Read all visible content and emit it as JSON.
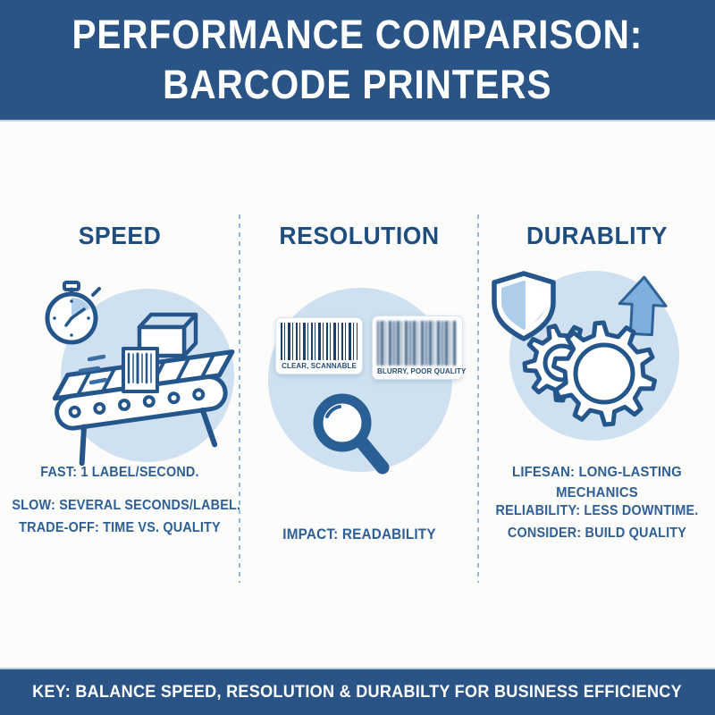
{
  "header": {
    "title_line1": "PERFORMANCE COMPARISON:",
    "title_line2": "BARCODE PRINTERS"
  },
  "columns": {
    "speed": {
      "title": "SPEED",
      "icon": "stopwatch-conveyor-printer-icon",
      "fast_line": "FAST: 1 LABEL/SECOND.",
      "slow_line": "SLOW: SEVERAL SECONDS/LABEL.",
      "tradeoff_line": "TRADE-OFF: TIME VS. QUALITY"
    },
    "resolution": {
      "title": "RESOLUTION",
      "icon": "barcode-compare-magnifier-icon",
      "clear_barcode_caption": "CLEAR, SCANNABLE",
      "blurry_barcode_caption": "BLURRY, POOR QUALITY",
      "impact_line": "IMPACT: READABILITY"
    },
    "durability": {
      "title": "DURABLITY",
      "icon": "shield-gears-arrow-icon",
      "lifespan_line": "LIFESAN: LONG-LASTING MECHANICS",
      "reliability_line": "RELIABILITY: LESS DOWNTIME.",
      "consider_line": "CONSIDER: BUILD QUALITY"
    }
  },
  "footer": {
    "key_text": "KEY: BALANCE SPEED, RESOLUTION & DURABILTY FOR BUSINESS EFFICIENCY"
  },
  "colors": {
    "banner_bg": "#2a5486",
    "banner_text": "#ffffff",
    "heading_text": "#1e4e7f",
    "body_text": "#2d5f96",
    "icon_stroke": "#24568c",
    "icon_fill_light": "#cfe1f1",
    "divider": "#93b7da",
    "card_border": "#d9e3ee",
    "barcode_dark": "#1d4068"
  }
}
